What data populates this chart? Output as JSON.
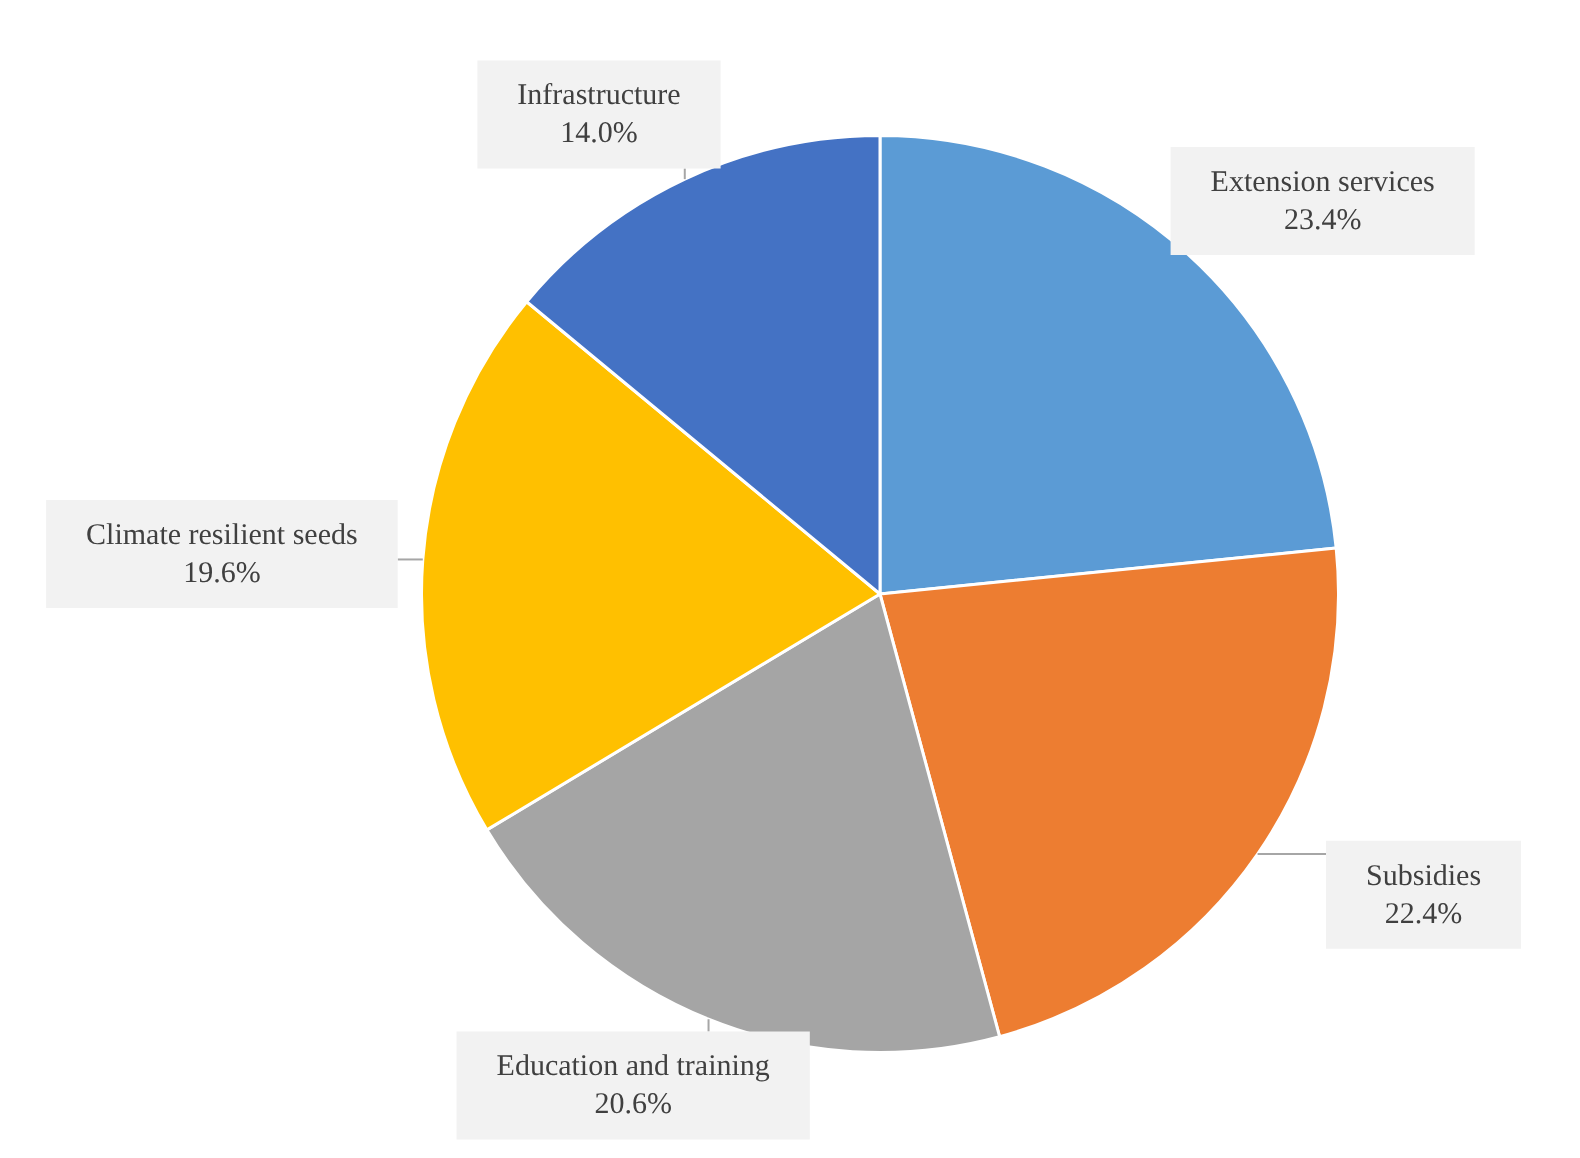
{
  "chart_data": {
    "type": "pie",
    "categories": [
      "Extension services",
      "Subsidies",
      "Education and training",
      "Climate resilient seeds",
      "Infrastructure"
    ],
    "values": [
      23.4,
      22.4,
      20.6,
      19.6,
      14.0
    ],
    "colors": [
      "#5b9bd5",
      "#ed7d31",
      "#a5a5a5",
      "#ffc000",
      "#4472c4"
    ],
    "value_labels": [
      "23.4%",
      "22.4%",
      "20.6%",
      "19.6%",
      "14.0%"
    ],
    "legend": false
  }
}
